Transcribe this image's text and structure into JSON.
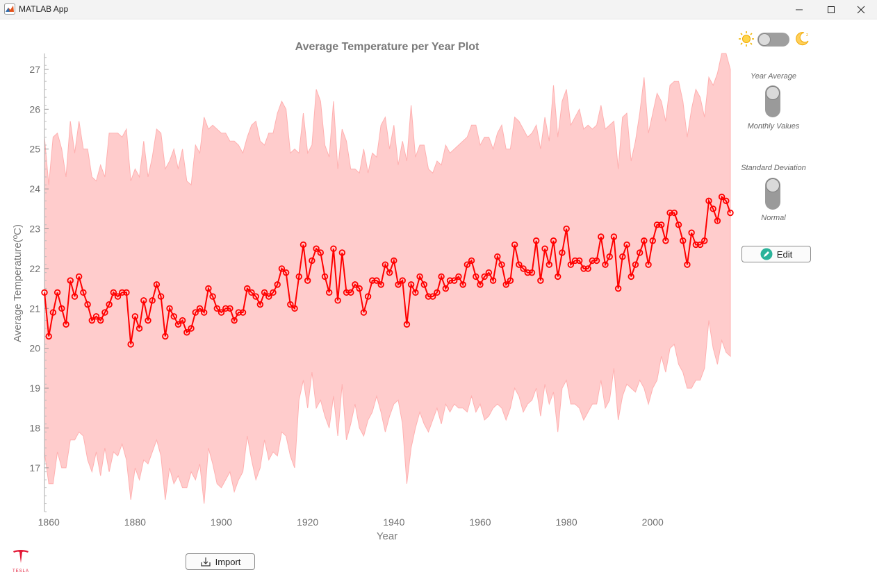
{
  "window": {
    "title": "MATLAB App",
    "minimize": "—",
    "maximize": "☐",
    "close": "✕"
  },
  "controls": {
    "theme": {
      "left_icon": "sun-icon",
      "right_icon": "moon-icon",
      "state": "light"
    },
    "average_switch": {
      "top_label": "Year Average",
      "bottom_label": "Monthly Values",
      "state": "Year Average"
    },
    "deviation_switch": {
      "top_label": "Standard Deviation",
      "bottom_label": "Normal",
      "state": "Standard Deviation"
    },
    "edit_button": {
      "label": "Edit",
      "icon": "pencil-icon"
    },
    "import_button": {
      "label": "Import",
      "icon": "download-icon"
    }
  },
  "logo": {
    "name": "tesla-logo",
    "text": "TESLA"
  },
  "colors": {
    "line": "#ff0000",
    "band": "#ffcccc",
    "band_edge": "#ffb0b0",
    "axis_text": "#6f6f6f"
  },
  "chart_data": {
    "type": "line",
    "title": "Average Temperature per Year Plot",
    "xlabel": "Year",
    "ylabel": "Average Temperature(ºC)",
    "xlim": [
      1859,
      2018
    ],
    "ylim": [
      15.9,
      27.4
    ],
    "xticks": [
      1860,
      1880,
      1900,
      1920,
      1940,
      1960,
      1980,
      2000
    ],
    "yticks": [
      17,
      18,
      19,
      20,
      21,
      22,
      23,
      24,
      25,
      26,
      27
    ],
    "grid": false,
    "x_start": 1859,
    "series": [
      {
        "values": [
          21.4,
          20.3,
          20.9,
          21.4,
          21.0,
          20.6,
          21.7,
          21.3,
          21.8,
          21.4,
          21.1,
          20.7,
          20.8,
          20.7,
          20.9,
          21.1,
          21.4,
          21.3,
          21.4,
          21.4,
          20.1,
          20.8,
          20.5,
          21.2,
          20.7,
          21.2,
          21.6,
          21.3,
          20.3,
          21.0,
          20.8,
          20.6,
          20.7,
          20.4,
          20.5,
          20.9,
          21.0,
          20.9,
          21.5,
          21.3,
          21.0,
          20.9,
          21.0,
          21.0,
          20.7,
          20.9,
          20.9,
          21.5,
          21.4,
          21.3,
          21.1,
          21.4,
          21.3,
          21.4,
          21.6,
          22.0,
          21.9,
          21.1,
          21.0,
          21.8,
          22.6,
          21.7,
          22.2,
          22.5,
          22.4,
          21.8,
          21.4,
          22.5,
          21.2,
          22.4,
          21.4,
          21.4,
          21.6,
          21.5,
          20.9,
          21.3,
          21.7,
          21.7,
          21.6,
          22.1,
          21.9,
          22.2,
          21.6,
          21.7,
          20.6,
          21.6,
          21.4,
          21.8,
          21.6,
          21.3,
          21.3,
          21.4,
          21.8,
          21.5,
          21.7,
          21.7,
          21.8,
          21.6,
          22.1,
          22.2,
          21.8,
          21.6,
          21.8,
          21.9,
          21.7,
          22.3,
          22.1,
          21.6,
          21.7,
          22.6,
          22.1,
          22.0,
          21.9,
          21.9,
          22.7,
          21.7,
          22.5,
          22.1,
          22.7,
          21.8,
          22.4,
          23.0,
          22.1,
          22.2,
          22.2,
          22.0,
          22.0,
          22.2,
          22.2,
          22.8,
          22.1,
          22.3,
          22.8,
          21.5,
          22.3,
          22.6,
          21.8,
          22.1,
          22.4,
          22.7,
          22.1,
          22.7,
          23.1,
          23.1,
          22.7,
          23.4,
          23.4,
          23.1,
          22.7,
          22.1,
          22.9,
          22.6,
          22.6,
          22.7,
          23.7,
          23.5,
          23.2,
          23.8,
          23.7,
          23.4
        ]
      }
    ],
    "band_upper": [
      25.3,
      24.1,
      25.3,
      25.4,
      25.0,
      24.3,
      25.7,
      24.9,
      25.7,
      25.0,
      25.0,
      24.3,
      24.2,
      24.6,
      24.3,
      25.4,
      25.4,
      25.4,
      25.3,
      25.5,
      24.2,
      24.5,
      24.3,
      25.2,
      24.3,
      24.8,
      25.5,
      25.4,
      24.5,
      24.7,
      25.0,
      24.5,
      25.0,
      24.2,
      24.1,
      25.1,
      24.9,
      25.8,
      25.5,
      25.6,
      25.5,
      25.4,
      25.4,
      25.2,
      25.2,
      25.1,
      24.9,
      25.3,
      25.6,
      25.7,
      25.2,
      25.1,
      25.4,
      25.4,
      25.9,
      26.2,
      26.0,
      24.9,
      25.0,
      24.9,
      25.9,
      24.9,
      25.1,
      26.5,
      26.2,
      25.1,
      24.8,
      26.2,
      24.5,
      25.5,
      25.2,
      24.5,
      24.5,
      24.4,
      25.0,
      24.4,
      24.9,
      24.8,
      25.6,
      25.8,
      25.0,
      25.6,
      24.6,
      25.2,
      24.7,
      26.1,
      24.8,
      25.1,
      25.1,
      24.5,
      24.4,
      24.7,
      24.6,
      25.1,
      24.9,
      25.0,
      25.1,
      25.2,
      25.3,
      25.6,
      25.6,
      25.1,
      25.3,
      25.3,
      25.0,
      25.4,
      25.6,
      25.0,
      25.0,
      25.8,
      25.7,
      25.5,
      25.3,
      25.4,
      25.6,
      25.0,
      25.8,
      25.2,
      26.6,
      25.3,
      26.2,
      26.5,
      25.6,
      25.8,
      26.0,
      25.5,
      25.6,
      25.5,
      25.6,
      26.1,
      25.5,
      25.6,
      25.7,
      24.5,
      25.8,
      25.9,
      24.7,
      25.2,
      25.9,
      26.8,
      25.4,
      25.9,
      26.4,
      26.2,
      25.7,
      26.6,
      26.7,
      26.7,
      26.2,
      25.3,
      26.0,
      26.5,
      26.3,
      25.8,
      26.8,
      26.6,
      26.9,
      27.4,
      27.4,
      27.0
    ],
    "band_lower": [
      17.4,
      16.6,
      16.6,
      17.4,
      17.0,
      17.0,
      17.7,
      17.7,
      17.9,
      17.8,
      17.2,
      16.9,
      17.4,
      16.8,
      17.5,
      16.9,
      17.4,
      17.3,
      17.6,
      17.2,
      16.2,
      17.0,
      16.7,
      17.2,
      17.1,
      17.4,
      17.7,
      17.3,
      16.2,
      17.0,
      16.6,
      16.8,
      16.5,
      16.5,
      16.9,
      16.7,
      17.1,
      16.1,
      17.5,
      17.1,
      16.6,
      16.5,
      16.7,
      16.9,
      16.4,
      16.7,
      16.9,
      17.8,
      17.2,
      16.7,
      17.0,
      17.7,
      17.2,
      17.4,
      17.3,
      17.9,
      17.8,
      17.3,
      17.0,
      18.7,
      19.2,
      18.5,
      19.4,
      18.5,
      18.7,
      18.3,
      18.0,
      18.8,
      17.8,
      19.1,
      17.7,
      18.1,
      18.6,
      18.0,
      17.8,
      18.2,
      18.4,
      18.8,
      18.4,
      17.9,
      18.3,
      18.6,
      18.7,
      18.1,
      16.6,
      17.5,
      18.0,
      18.4,
      18.1,
      17.9,
      18.2,
      18.5,
      18.1,
      18.6,
      18.4,
      18.6,
      18.5,
      18.5,
      18.4,
      18.8,
      18.4,
      18.6,
      18.2,
      18.3,
      18.5,
      18.6,
      18.5,
      18.2,
      18.5,
      19.0,
      18.8,
      18.4,
      18.6,
      18.7,
      19.0,
      18.3,
      19.1,
      18.6,
      18.9,
      17.9,
      19.0,
      19.2,
      18.6,
      18.6,
      18.5,
      18.2,
      18.4,
      18.6,
      18.6,
      19.2,
      18.5,
      18.7,
      19.5,
      18.2,
      18.8,
      19.1,
      19.0,
      18.9,
      19.2,
      19.0,
      18.6,
      19.0,
      19.2,
      19.8,
      19.4,
      20.0,
      20.1,
      19.6,
      19.4,
      19.0,
      19.0,
      19.2,
      19.2,
      19.5,
      20.7,
      20.0,
      19.6,
      20.2,
      19.9,
      19.8
    ]
  }
}
